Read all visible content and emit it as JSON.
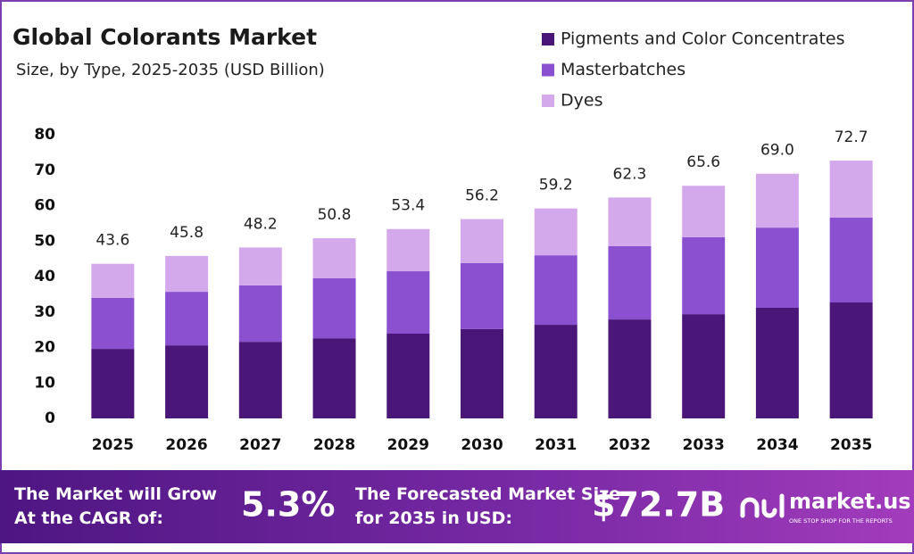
{
  "chart_data": {
    "type": "stacked_bar",
    "title": "Global Colorants Market",
    "subtitle": "Size, by Type, 2025-2035 (USD Billion)",
    "categories": [
      "2025",
      "2026",
      "2027",
      "2028",
      "2029",
      "2030",
      "2031",
      "2032",
      "2033",
      "2034",
      "2035"
    ],
    "series": [
      {
        "name": "Pigments and Color Concentrates",
        "color": "#4a1778",
        "values": [
          19.6,
          20.6,
          21.6,
          22.6,
          23.9,
          25.2,
          26.4,
          27.9,
          29.4,
          31.2,
          32.7
        ]
      },
      {
        "name": "Masterbatches",
        "color": "#8a50cf",
        "values": [
          14.4,
          15.1,
          15.9,
          16.9,
          17.6,
          18.6,
          19.6,
          20.7,
          21.7,
          22.6,
          23.9
        ]
      },
      {
        "name": "Dyes",
        "color": "#d3a9ec",
        "values": [
          9.6,
          10.1,
          10.7,
          11.3,
          11.9,
          12.4,
          13.2,
          13.7,
          14.5,
          15.2,
          16.1
        ]
      }
    ],
    "totals": {
      "values": [
        43.6,
        45.8,
        48.2,
        50.8,
        53.4,
        56.2,
        59.2,
        62.3,
        65.6,
        69.0,
        72.7
      ],
      "value_labels": [
        "43.6",
        "45.8",
        "48.2",
        "50.8",
        "53.4",
        "56.2",
        "59.2",
        "62.3",
        "65.6",
        "69.0",
        "72.7"
      ]
    },
    "ylim": [
      0,
      80
    ],
    "yticks": [
      0,
      10,
      20,
      30,
      40,
      50,
      60,
      70,
      80
    ],
    "grid": false,
    "legend": "top-right"
  },
  "footer": {
    "cagr_text": "The Market will Grow At the CAGR of:",
    "cagr_value": "5.3%",
    "forecast_text": "The Forecasted Market Size for 2035 in USD:",
    "forecast_value": "$72.7B",
    "logo": "market.us",
    "tagline": "ONE STOP SHOP FOR THE REPORTS"
  }
}
